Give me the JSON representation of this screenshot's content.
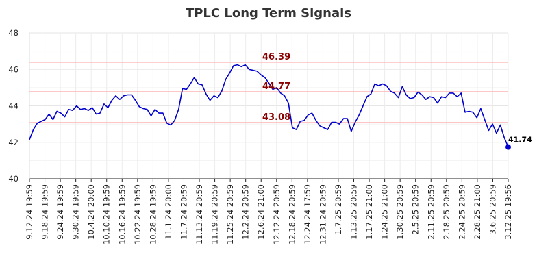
{
  "chart_data": {
    "type": "line",
    "title": "TPLC Long Term Signals",
    "xlabel": "",
    "ylabel": "",
    "ylim": [
      40,
      48
    ],
    "yticks": [
      40,
      42,
      44,
      46,
      48
    ],
    "grid": true,
    "x_tick_labels": [
      "9.12.24 19:59",
      "9.18.24 19:59",
      "9.24.24 19:59",
      "9.30.24 19:59",
      "10.4.24 20:00",
      "10.10.24 19:59",
      "10.16.24 19:59",
      "10.22.24 19:59",
      "10.28.24 19:59",
      "11.1.24 20:00",
      "11.7.24 20:59",
      "11.13.24 20:59",
      "11.19.24 20:59",
      "11.25.24 20:59",
      "12.2.24 20:59",
      "12.6.24 21:00",
      "12.12.24 20:59",
      "12.18.24 20:59",
      "12.24.24 17:59",
      "12.31.24 20:59",
      "1.7.25 20:59",
      "1.13.25 20:59",
      "1.17.25 21:00",
      "1.24.25 21:00",
      "1.30.25 20:59",
      "2.5.25 20:59",
      "2.11.25 20:59",
      "2.18.25 20:59",
      "2.24.25 20:59",
      "2.28.25 21:00",
      "3.6.25 20:59",
      "3.12.25 19:56"
    ],
    "signal_lines": [
      {
        "value": 46.39,
        "label": "46.39",
        "color": "#ffb3b3"
      },
      {
        "value": 44.77,
        "label": "44.77",
        "color": "#ffb3b3"
      },
      {
        "value": 43.08,
        "label": "43.08",
        "color": "#ffb3b3"
      }
    ],
    "series": [
      {
        "color": "#0000cc",
        "values": [
          42.15,
          42.7,
          43.05,
          43.15,
          43.25,
          43.55,
          43.25,
          43.7,
          43.6,
          43.4,
          43.8,
          43.75,
          44.0,
          43.8,
          43.85,
          43.75,
          43.9,
          43.55,
          43.6,
          44.1,
          43.9,
          44.3,
          44.55,
          44.35,
          44.55,
          44.6,
          44.6,
          44.3,
          43.95,
          43.85,
          43.8,
          43.45,
          43.8,
          43.6,
          43.6,
          43.05,
          42.95,
          43.2,
          43.8,
          44.95,
          44.9,
          45.2,
          45.55,
          45.2,
          45.15,
          44.65,
          44.3,
          44.55,
          44.45,
          44.8,
          45.45,
          45.8,
          46.2,
          46.25,
          46.15,
          46.25,
          46.0,
          45.95,
          45.9,
          45.7,
          45.55,
          45.25,
          44.9,
          45.0,
          44.7,
          44.55,
          44.15,
          42.8,
          42.7,
          43.15,
          43.2,
          43.5,
          43.6,
          43.2,
          42.9,
          42.8,
          42.7,
          43.1,
          43.1,
          43.0,
          43.3,
          43.3,
          42.6,
          43.1,
          43.5,
          44.0,
          44.5,
          44.65,
          45.2,
          45.1,
          45.2,
          45.1,
          44.8,
          44.7,
          44.45,
          45.05,
          44.6,
          44.4,
          44.45,
          44.75,
          44.6,
          44.35,
          44.5,
          44.45,
          44.15,
          44.5,
          44.45,
          44.7,
          44.7,
          44.5,
          44.7,
          43.65,
          43.7,
          43.65,
          43.35,
          43.85,
          43.25,
          42.65,
          43.0,
          42.5,
          42.95,
          42.25,
          41.74
        ]
      }
    ],
    "last_point": {
      "value": 41.74,
      "label": "41.74"
    }
  }
}
